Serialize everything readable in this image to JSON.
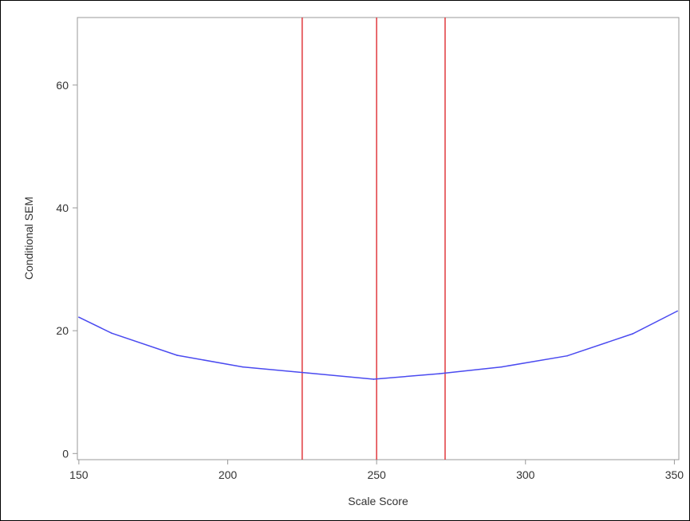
{
  "chart_data": {
    "type": "line",
    "title": "",
    "xlabel": "Scale Score",
    "ylabel": "Conditional SEM",
    "xlim": [
      149.5,
      351.5
    ],
    "ylim": [
      -1,
      71
    ],
    "xticks": [
      150,
      200,
      250,
      300,
      350
    ],
    "yticks": [
      0,
      20,
      40,
      60
    ],
    "grid": false,
    "series": [
      {
        "x": [
          150,
          161,
          183,
          205,
          227,
          249,
          271,
          292,
          314,
          336,
          351
        ],
        "y": [
          22.2,
          19.6,
          16.0,
          14.1,
          13.1,
          12.1,
          13.0,
          14.1,
          15.9,
          19.5,
          23.2
        ]
      }
    ],
    "reference_lines": [
      {
        "axis": "x",
        "value": 225
      },
      {
        "axis": "x",
        "value": 250
      },
      {
        "axis": "x",
        "value": 273
      }
    ],
    "colors": {
      "series": "#4a4af0",
      "reference": "#e0393e",
      "axis": "#999999",
      "text": "#333333"
    }
  }
}
